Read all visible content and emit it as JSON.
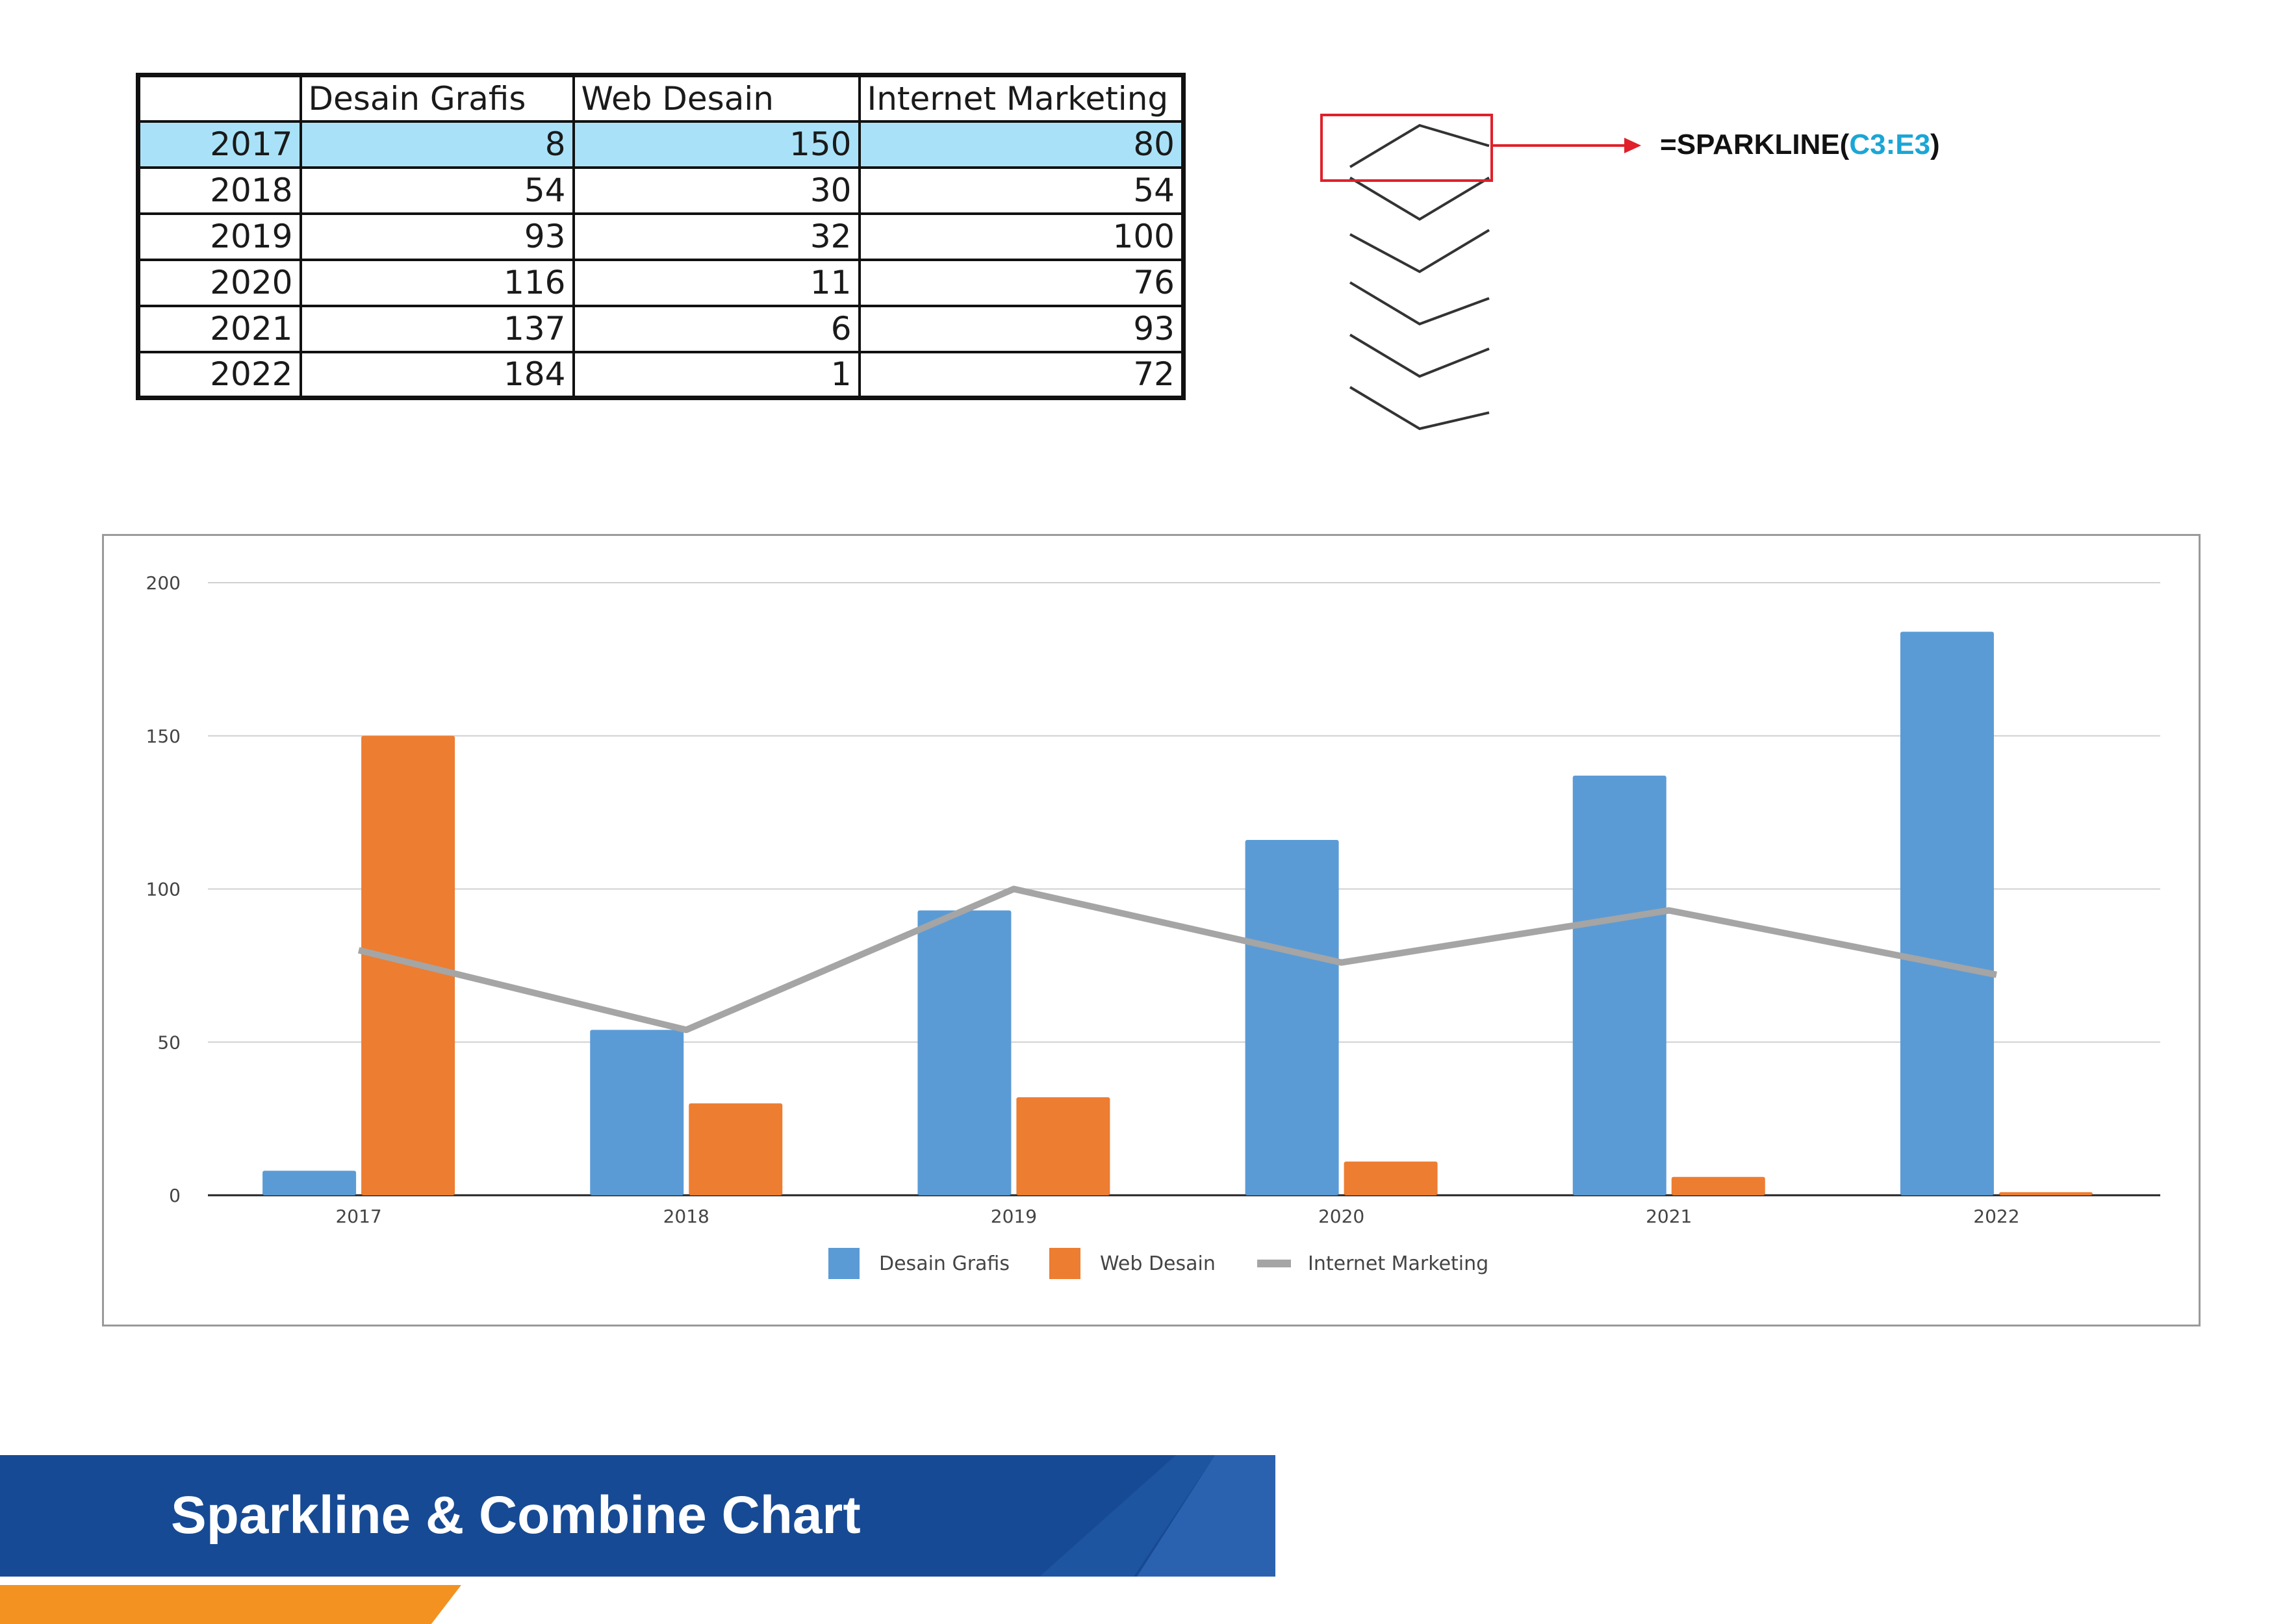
{
  "table": {
    "headers": [
      "",
      "Desain Grafis",
      "Web Desain",
      "Internet Marketing"
    ],
    "rows": [
      {
        "year": "2017",
        "values": [
          "8",
          "150",
          "80"
        ]
      },
      {
        "year": "2018",
        "values": [
          "54",
          "30",
          "54"
        ]
      },
      {
        "year": "2019",
        "values": [
          "93",
          "32",
          "100"
        ]
      },
      {
        "year": "2020",
        "values": [
          "116",
          "11",
          "76"
        ]
      },
      {
        "year": "2021",
        "values": [
          "137",
          "6",
          "93"
        ]
      },
      {
        "year": "2022",
        "values": [
          "184",
          "1",
          "72"
        ]
      }
    ],
    "highlight_color": "#a9e2f8"
  },
  "sparkline": {
    "formula_prefix": "=SPARKLINE(",
    "formula_range": "C3:E3",
    "formula_suffix": ")",
    "range_color": "#1aa6d6",
    "callout_color": "#e0202a",
    "line_color": "#333333"
  },
  "chart_data": {
    "type": "bar",
    "categories": [
      "2017",
      "2018",
      "2019",
      "2020",
      "2021",
      "2022"
    ],
    "series": [
      {
        "name": "Desain Grafis",
        "type": "bar",
        "color": "#5b9bd5",
        "values": [
          8,
          54,
          93,
          116,
          137,
          184
        ]
      },
      {
        "name": "Web Desain",
        "type": "bar",
        "color": "#ed7d31",
        "values": [
          150,
          30,
          32,
          11,
          6,
          1
        ]
      },
      {
        "name": "Internet Marketing",
        "type": "line",
        "color": "#a5a5a5",
        "values": [
          80,
          54,
          100,
          76,
          93,
          72
        ]
      }
    ],
    "yticks": [
      "0",
      "50",
      "100",
      "150",
      "200"
    ],
    "ylim": [
      0,
      200
    ],
    "grid": true,
    "legend": "bottom",
    "title": "",
    "xlabel": "",
    "ylabel": ""
  },
  "banner": {
    "title": "Sparkline & Combine Chart",
    "main_color": "#174a94",
    "accent_color": "#f39221"
  }
}
